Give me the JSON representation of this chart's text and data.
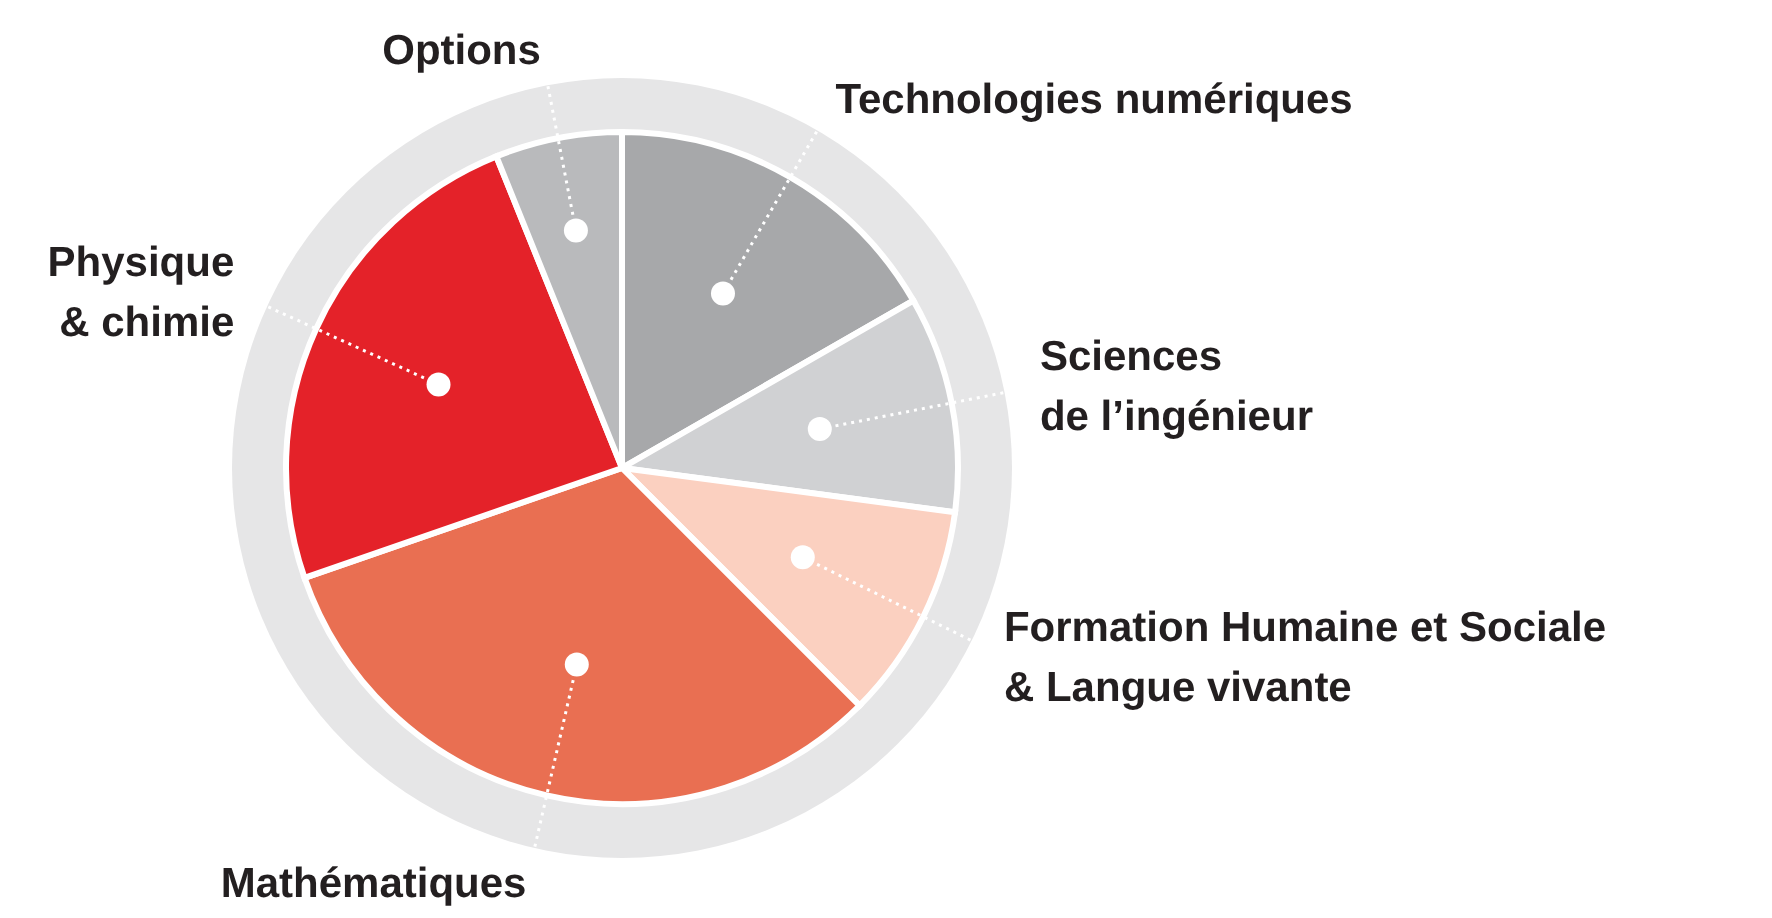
{
  "chart_data": {
    "type": "pie",
    "categories": [
      "Technologies numériques",
      "Sciences\nde l’ingénieur",
      "Formation Humaine et Sociale\n& Langue vivante",
      "Mathématiques",
      "Physique\n& chimie",
      "Options"
    ],
    "values": [
      16.7,
      10.4,
      10.4,
      32.2,
      24.2,
      6.1
    ],
    "colors": [
      "#a7a8aa",
      "#d0d1d3",
      "#fbd0c0",
      "#e96f52",
      "#e42229",
      "#b9babc"
    ]
  }
}
